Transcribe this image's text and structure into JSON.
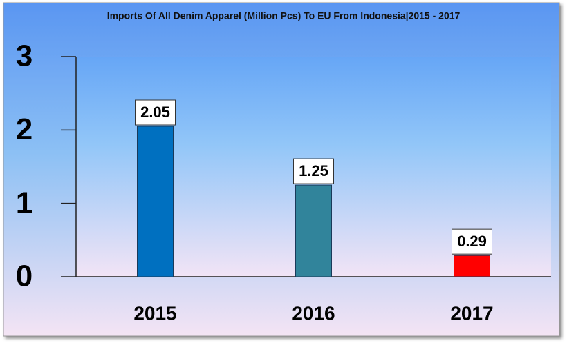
{
  "chart_data": {
    "type": "bar",
    "title": "Imports Of All Denim Apparel (Million Pcs) To EU From Indonesia|2015 - 2017",
    "categories": [
      "2015",
      "2016",
      "2017"
    ],
    "values": [
      2.05,
      1.25,
      0.29
    ],
    "colors": [
      "#0070c0",
      "#31849b",
      "#ff0000"
    ],
    "ylim": [
      0,
      3
    ],
    "yticks": [
      0,
      1,
      2,
      3
    ]
  }
}
